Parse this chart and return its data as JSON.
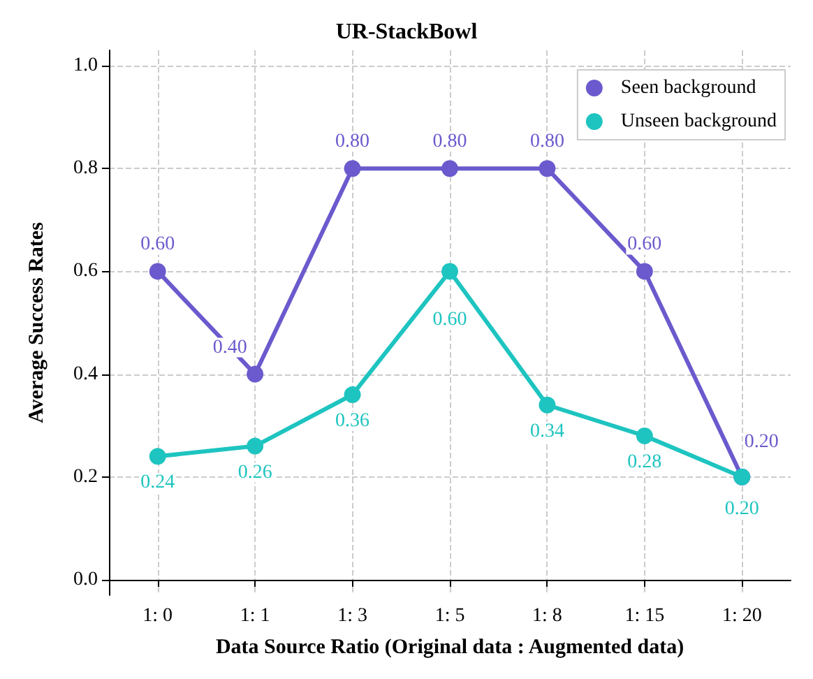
{
  "chart_data": {
    "type": "line",
    "title": "UR-StackBowl",
    "xlabel": "Data Source Ratio (Original data : Augmented data)",
    "ylabel": "Average Success Rates",
    "categories": [
      "1: 0",
      "1: 1",
      "1: 3",
      "1: 5",
      "1: 8",
      "1: 15",
      "1: 20"
    ],
    "series": [
      {
        "name": "Seen background",
        "color": "#6a5acd",
        "values": [
          0.6,
          0.4,
          0.8,
          0.8,
          0.8,
          0.6,
          0.2
        ],
        "value_labels": [
          "0.60",
          "0.40",
          "0.80",
          "0.80",
          "0.80",
          "0.60",
          "0.20"
        ]
      },
      {
        "name": "Unseen background",
        "color": "#1ec4c0",
        "values": [
          0.24,
          0.26,
          0.36,
          0.6,
          0.34,
          0.28,
          0.2
        ],
        "value_labels": [
          "0.24",
          "0.26",
          "0.36",
          "0.60",
          "0.34",
          "0.28",
          "0.20"
        ]
      }
    ],
    "ylim": [
      -0.03,
      1.03
    ],
    "yticks": [
      {
        "value": 0,
        "label": "0.0"
      },
      {
        "value": 0.2,
        "label": "0.2"
      },
      {
        "value": 0.4,
        "label": "0.4"
      },
      {
        "value": 0.6,
        "label": "0.6"
      },
      {
        "value": 0.8,
        "label": "0.8"
      },
      {
        "value": 1,
        "label": "1.0"
      }
    ],
    "grid": true,
    "legend": "top right",
    "marker": "circle",
    "line_style": "solid"
  }
}
